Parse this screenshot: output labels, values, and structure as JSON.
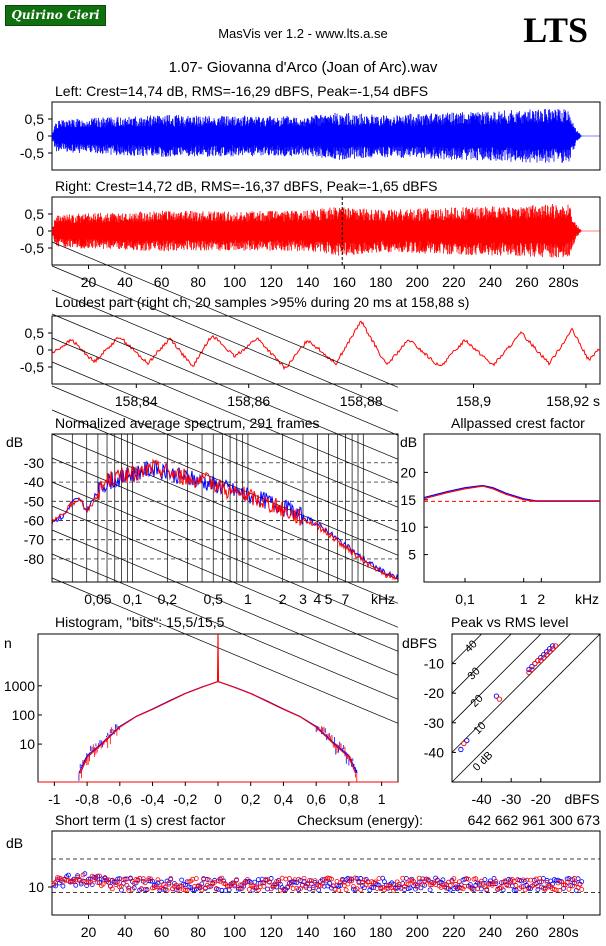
{
  "header": {
    "badge": "Quirino Cieri",
    "app": "MasVis ver 1.2 - www.lts.a.se",
    "logo": "LTS",
    "file": "1.07- Giovanna d'Arco (Joan of Arc).wav",
    "checksum_label": "Checksum (energy):",
    "checksum_value": "642 662 961 300 673"
  },
  "colors": {
    "left": "#0000ff",
    "right": "#ff0000",
    "grid": "#000000"
  },
  "chart_data": [
    {
      "id": "left-waveform",
      "type": "line",
      "title": "Left: Crest=14,74 dB, RMS=-16,29 dBFS, Peak=-1,54 dBFS",
      "x_range": [
        0,
        300
      ],
      "ylim": [
        -1,
        1
      ],
      "yticks": [
        "0,5",
        "0",
        "-0,5"
      ],
      "ytick_values": [
        0.5,
        0,
        -0.5
      ],
      "envelope": [
        [
          0,
          0.05
        ],
        [
          2,
          0.45
        ],
        [
          10,
          0.5
        ],
        [
          30,
          0.55
        ],
        [
          60,
          0.62
        ],
        [
          100,
          0.6
        ],
        [
          140,
          0.6
        ],
        [
          158,
          0.7
        ],
        [
          180,
          0.62
        ],
        [
          220,
          0.7
        ],
        [
          260,
          0.78
        ],
        [
          270,
          0.8
        ],
        [
          283,
          0.8
        ],
        [
          287,
          0.2
        ],
        [
          290,
          0
        ],
        [
          300,
          0
        ]
      ]
    },
    {
      "id": "right-waveform",
      "type": "line",
      "title": "Right: Crest=14,72 dB, RMS=-16,37 dBFS, Peak=-1,65 dBFS",
      "x_range": [
        0,
        300
      ],
      "ylim": [
        -1,
        1
      ],
      "xticks": [
        "20",
        "40",
        "60",
        "80",
        "100",
        "120",
        "140",
        "160",
        "180",
        "200",
        "220",
        "240",
        "260",
        "280s"
      ],
      "xtick_values": [
        20,
        40,
        60,
        80,
        100,
        120,
        140,
        160,
        180,
        200,
        220,
        240,
        260,
        280
      ],
      "yticks": [
        "0,5",
        "0",
        "-0,5"
      ],
      "ytick_values": [
        0.5,
        0,
        -0.5
      ],
      "loudest_marker": 158.88,
      "envelope": [
        [
          0,
          0.05
        ],
        [
          2,
          0.45
        ],
        [
          10,
          0.5
        ],
        [
          30,
          0.55
        ],
        [
          60,
          0.6
        ],
        [
          100,
          0.58
        ],
        [
          140,
          0.6
        ],
        [
          158,
          0.75
        ],
        [
          180,
          0.62
        ],
        [
          220,
          0.7
        ],
        [
          260,
          0.75
        ],
        [
          270,
          0.8
        ],
        [
          283,
          0.78
        ],
        [
          287,
          0.2
        ],
        [
          290,
          0
        ],
        [
          300,
          0
        ]
      ]
    },
    {
      "id": "loudest-part",
      "type": "line",
      "title": "Loudest part (right ch, 20 samples >95% during 20 ms at 158,88 s)",
      "xlim": [
        158.825,
        158.9225
      ],
      "ylim": [
        -1,
        1
      ],
      "xticks": [
        "158,84",
        "158,86",
        "158,88",
        "158,9",
        "158,92 s"
      ],
      "xtick_values": [
        158.84,
        158.86,
        158.88,
        158.9,
        158.92
      ],
      "yticks": [
        "0,5",
        "0",
        "-0,5"
      ],
      "ytick_values": [
        0.5,
        0,
        -0.5
      ],
      "series": [
        {
          "values": [
            [
              158.825,
              -0.1
            ],
            [
              158.8285,
              0.3
            ],
            [
              158.8325,
              -0.35
            ],
            [
              158.837,
              0.4
            ],
            [
              158.842,
              -0.4
            ],
            [
              158.846,
              0.35
            ],
            [
              158.85,
              -0.5
            ],
            [
              158.8535,
              0.45
            ],
            [
              158.8575,
              -0.2
            ],
            [
              158.8615,
              0.35
            ],
            [
              158.8665,
              -0.55
            ],
            [
              158.8705,
              0.3
            ],
            [
              158.8755,
              -0.4
            ],
            [
              158.88,
              0.85
            ],
            [
              158.8845,
              -0.45
            ],
            [
              158.8885,
              0.3
            ],
            [
              158.894,
              -0.5
            ],
            [
              158.8985,
              0.3
            ],
            [
              158.9035,
              -0.45
            ],
            [
              158.9085,
              0.5
            ],
            [
              158.9135,
              -0.4
            ],
            [
              158.9175,
              0.6
            ],
            [
              158.9205,
              -0.3
            ],
            [
              158.9225,
              0.05
            ]
          ]
        }
      ]
    },
    {
      "id": "spectrum",
      "type": "line",
      "title": "Normalized average spectrum, 291 frames",
      "ylabel": "dB",
      "x_unit": "kHz",
      "xlim": [
        0.02,
        20
      ],
      "ylim": [
        -92,
        -15
      ],
      "x_scale": "log",
      "xticks": [
        "0,05",
        "0,1",
        "0,2",
        "0,5",
        "1",
        "2",
        "3",
        "4",
        "5",
        "7",
        "kHz"
      ],
      "xtick_values": [
        0.05,
        0.1,
        0.2,
        0.5,
        1,
        2,
        3,
        4,
        5,
        7
      ],
      "yticks": [
        "-30",
        "-40",
        "-50",
        "-60",
        "-70",
        "-80"
      ],
      "ytick_values": [
        -30,
        -40,
        -50,
        -60,
        -70,
        -80
      ],
      "series": [
        {
          "values": [
            [
              0.02,
              -60
            ],
            [
              0.025,
              -58
            ],
            [
              0.03,
              -50
            ],
            [
              0.035,
              -49
            ],
            [
              0.04,
              -55
            ],
            [
              0.05,
              -45
            ],
            [
              0.06,
              -40
            ],
            [
              0.08,
              -38
            ],
            [
              0.1,
              -36
            ],
            [
              0.12,
              -34
            ],
            [
              0.15,
              -33
            ],
            [
              0.2,
              -35
            ],
            [
              0.3,
              -38
            ],
            [
              0.5,
              -41
            ],
            [
              0.7,
              -44
            ],
            [
              1,
              -47
            ],
            [
              1.5,
              -50
            ],
            [
              2,
              -53
            ],
            [
              3,
              -58
            ],
            [
              4,
              -62
            ],
            [
              5,
              -66
            ],
            [
              7,
              -73
            ],
            [
              10,
              -80
            ],
            [
              15,
              -87
            ],
            [
              20,
              -90
            ]
          ]
        },
        {
          "values": [
            [
              0.02,
              -61
            ],
            [
              0.025,
              -57
            ],
            [
              0.03,
              -51
            ],
            [
              0.035,
              -48
            ],
            [
              0.04,
              -56
            ],
            [
              0.05,
              -46
            ],
            [
              0.06,
              -39
            ],
            [
              0.08,
              -37
            ],
            [
              0.1,
              -36
            ],
            [
              0.12,
              -35
            ],
            [
              0.15,
              -32
            ],
            [
              0.2,
              -34
            ],
            [
              0.3,
              -38
            ],
            [
              0.5,
              -40
            ],
            [
              0.7,
              -45
            ],
            [
              1,
              -47
            ],
            [
              1.5,
              -51
            ],
            [
              2,
              -54
            ],
            [
              3,
              -59
            ],
            [
              4,
              -63
            ],
            [
              5,
              -67
            ],
            [
              7,
              -74
            ],
            [
              10,
              -81
            ],
            [
              15,
              -88
            ],
            [
              20,
              -90
            ]
          ]
        }
      ]
    },
    {
      "id": "allpassed-crest",
      "type": "line",
      "title": "Allpassed crest factor",
      "ylabel": "dB",
      "x_unit": "kHz",
      "xlim": [
        0.02,
        20
      ],
      "ylim": [
        0,
        27
      ],
      "x_scale": "log",
      "xticks": [
        "0,1",
        "1",
        "2",
        "kHz"
      ],
      "xtick_values": [
        0.1,
        1,
        2
      ],
      "yticks": [
        "20",
        "15",
        "10",
        "5"
      ],
      "ytick_values": [
        20,
        15,
        10,
        5
      ],
      "reference": 14.7,
      "series": [
        {
          "values": [
            [
              0.02,
              15.4
            ],
            [
              0.05,
              16.5
            ],
            [
              0.1,
              17.2
            ],
            [
              0.2,
              17.6
            ],
            [
              0.3,
              17.2
            ],
            [
              0.5,
              16.2
            ],
            [
              1,
              15.2
            ],
            [
              1.6,
              14.8
            ],
            [
              20,
              14.8
            ]
          ]
        },
        {
          "values": [
            [
              0.02,
              15.2
            ],
            [
              0.05,
              16.3
            ],
            [
              0.1,
              17.0
            ],
            [
              0.2,
              17.5
            ],
            [
              0.3,
              17.0
            ],
            [
              0.5,
              16.0
            ],
            [
              1,
              15.0
            ],
            [
              1.6,
              14.7
            ],
            [
              20,
              14.7
            ]
          ]
        }
      ]
    },
    {
      "id": "histogram",
      "type": "line",
      "title": "Histogram, \"bits\": 15,5/15,5",
      "ylabel": "n",
      "y_scale": "log",
      "xlim": [
        -1.1,
        1.1
      ],
      "ylim": [
        0.5,
        60000
      ],
      "xticks": [
        "-1",
        "-0,8",
        "-0,6",
        "-0,4",
        "-0,2",
        "0",
        "0,2",
        "0,4",
        "0,6",
        "0,8",
        "1"
      ],
      "xtick_values": [
        -1,
        -0.8,
        -0.6,
        -0.4,
        -0.2,
        0,
        0.2,
        0.4,
        0.6,
        0.8,
        1
      ],
      "yticks": [
        "1000",
        "100",
        "10"
      ],
      "ytick_values": [
        1000,
        100,
        10
      ],
      "series": [
        {
          "values": [
            [
              -0.85,
              1
            ],
            [
              -0.8,
              4
            ],
            [
              -0.7,
              12
            ],
            [
              -0.6,
              40
            ],
            [
              -0.5,
              90
            ],
            [
              -0.4,
              160
            ],
            [
              -0.3,
              300
            ],
            [
              -0.2,
              550
            ],
            [
              -0.1,
              900
            ],
            [
              0,
              1400
            ],
            [
              0.1,
              900
            ],
            [
              0.2,
              550
            ],
            [
              0.3,
              300
            ],
            [
              0.4,
              160
            ],
            [
              0.5,
              90
            ],
            [
              0.6,
              40
            ],
            [
              0.7,
              12
            ],
            [
              0.8,
              4
            ],
            [
              0.85,
              1
            ]
          ]
        },
        {
          "values": [
            [
              -0.84,
              1
            ],
            [
              -0.8,
              3.5
            ],
            [
              -0.7,
              11
            ],
            [
              -0.6,
              38
            ],
            [
              -0.5,
              88
            ],
            [
              -0.4,
              155
            ],
            [
              -0.3,
              290
            ],
            [
              -0.2,
              540
            ],
            [
              -0.1,
              880
            ],
            [
              -0.003,
              1400
            ],
            [
              0,
              60000
            ],
            [
              0.003,
              1400
            ],
            [
              0.1,
              880
            ],
            [
              0.2,
              540
            ],
            [
              0.3,
              290
            ],
            [
              0.4,
              155
            ],
            [
              0.5,
              88
            ],
            [
              0.6,
              38
            ],
            [
              0.7,
              11
            ],
            [
              0.8,
              3.5
            ],
            [
              0.84,
              1
            ]
          ]
        }
      ]
    },
    {
      "id": "peak-vs-rms",
      "type": "scatter",
      "title": "Peak vs RMS level",
      "ylabel": "dBFS",
      "xlabel": "dBFS",
      "xlim": [
        -50,
        0
      ],
      "ylim": [
        -50,
        0
      ],
      "xticks": [
        "-40",
        "-30",
        "-20"
      ],
      "xtick_values": [
        -40,
        -30,
        -20
      ],
      "yticks": [
        "-10",
        "-20",
        "-30",
        "-40"
      ],
      "ytick_values": [
        -10,
        -20,
        -30,
        -40
      ],
      "diagonals": [
        {
          "offset": 40,
          "label": "40"
        },
        {
          "offset": 30,
          "label": "30"
        },
        {
          "offset": 20,
          "label": "20"
        },
        {
          "offset": 10,
          "label": "10"
        },
        {
          "offset": 0,
          "label": "0 dB"
        }
      ],
      "series": [
        {
          "values": [
            [
              -47,
              -39
            ],
            [
              -45,
              -36
            ],
            [
              -35,
              -21
            ],
            [
              -24,
              -12
            ],
            [
              -23,
              -11
            ],
            [
              -22,
              -10
            ],
            [
              -21,
              -9
            ],
            [
              -20,
              -8
            ],
            [
              -19,
              -7
            ],
            [
              -18,
              -6
            ],
            [
              -17,
              -5
            ],
            [
              -16,
              -4
            ]
          ]
        },
        {
          "values": [
            [
              -46,
              -37
            ],
            [
              -34,
              -22
            ],
            [
              -24,
              -13
            ],
            [
              -23,
              -12
            ],
            [
              -22,
              -10
            ],
            [
              -21,
              -9
            ],
            [
              -20,
              -9
            ],
            [
              -19,
              -8
            ],
            [
              -18,
              -7
            ],
            [
              -17,
              -6
            ],
            [
              -16,
              -5
            ],
            [
              -15,
              -4
            ]
          ]
        }
      ]
    },
    {
      "id": "short-term-crest",
      "type": "scatter",
      "title": "Short term (1 s) crest factor",
      "ylabel": "dB",
      "xlim": [
        0,
        300
      ],
      "ylim": [
        0,
        30
      ],
      "xticks": [
        "20",
        "40",
        "60",
        "80",
        "100",
        "120",
        "140",
        "160",
        "180",
        "200",
        "220",
        "240",
        "260",
        "280s"
      ],
      "xtick_values": [
        20,
        40,
        60,
        80,
        100,
        120,
        140,
        160,
        180,
        200,
        220,
        240,
        260,
        280
      ],
      "yticks": [
        "10"
      ],
      "ytick_values": [
        10
      ],
      "dashed": [
        20,
        8
      ],
      "mean": 11,
      "series": [
        {},
        {}
      ]
    }
  ]
}
